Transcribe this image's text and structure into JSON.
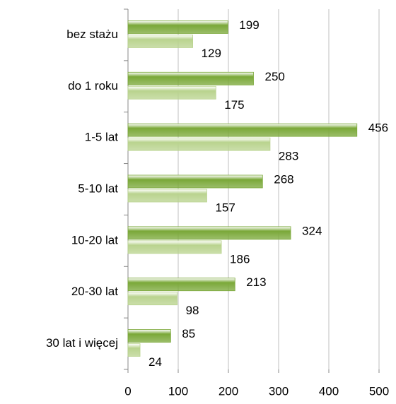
{
  "chart_data": {
    "type": "hbar",
    "categories": [
      "bez stażu",
      "do 1 roku",
      "1-5 lat",
      "5-10 lat",
      "10-20 lat",
      "20-30 lat",
      "30 lat i więcej"
    ],
    "series": [
      {
        "color": "#7aa838",
        "values": [
          199,
          250,
          456,
          268,
          324,
          213,
          85
        ]
      },
      {
        "color": "#b9d38e",
        "values": [
          129,
          175,
          283,
          157,
          186,
          98,
          24
        ]
      }
    ],
    "xlim": [
      0,
      500
    ],
    "xticks": [
      0,
      100,
      200,
      300,
      400,
      500
    ],
    "grid": true
  }
}
